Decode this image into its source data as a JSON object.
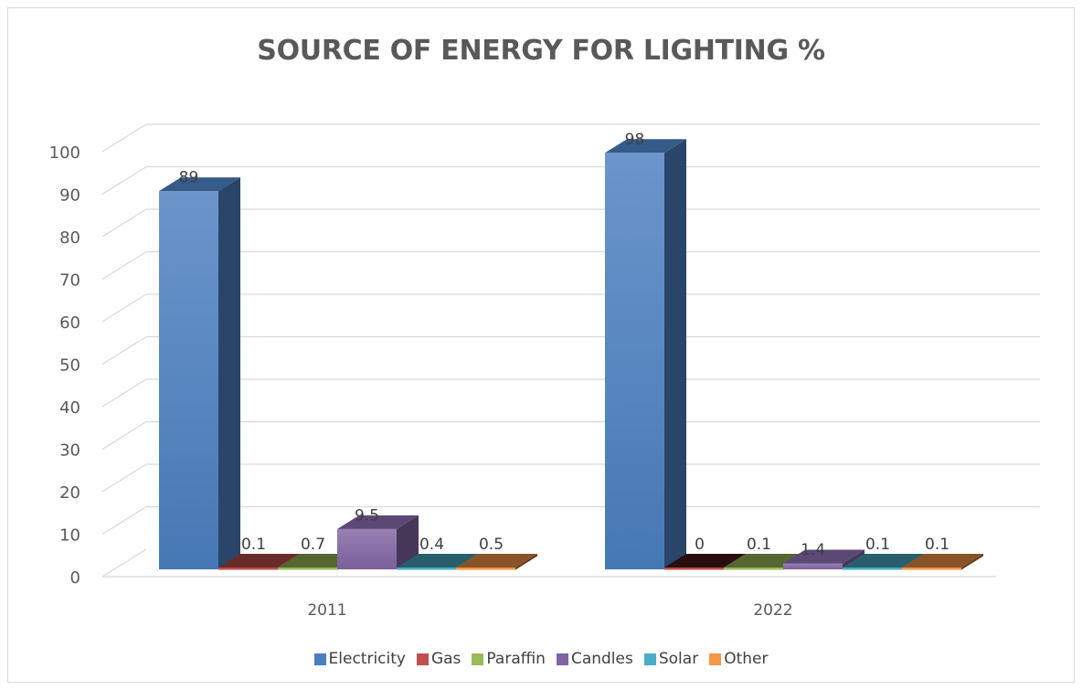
{
  "chart_data": {
    "type": "bar",
    "title": "SOURCE OF ENERGY FOR LIGHTING %",
    "categories": [
      "2011",
      "2022"
    ],
    "series": [
      {
        "name": "Electricity",
        "values": [
          89,
          98
        ],
        "labels": [
          "89",
          "98"
        ]
      },
      {
        "name": "Gas",
        "values": [
          0.1,
          0
        ],
        "labels": [
          "0.1",
          "0"
        ]
      },
      {
        "name": "Paraffin",
        "values": [
          0.7,
          0.1
        ],
        "labels": [
          "0.7",
          "0.1"
        ]
      },
      {
        "name": "Candles",
        "values": [
          9.5,
          1.4
        ],
        "labels": [
          "9.5",
          "1.4"
        ]
      },
      {
        "name": "Solar",
        "values": [
          0.4,
          0.1
        ],
        "labels": [
          "0.4",
          "0.1"
        ]
      },
      {
        "name": "Other",
        "values": [
          0.5,
          0.1
        ],
        "labels": [
          "0.5",
          "0.1"
        ]
      }
    ],
    "yticks": [
      "0",
      "10",
      "20",
      "30",
      "40",
      "50",
      "60",
      "70",
      "80",
      "90",
      "100"
    ],
    "ylim": [
      0,
      100
    ],
    "grid": true,
    "legend_position": "bottom",
    "colors": [
      "#4a7ebf",
      "#c0504d",
      "#9bbb59",
      "#8064a2",
      "#4bacc6",
      "#f79646"
    ],
    "xlabel": "",
    "ylabel": ""
  }
}
